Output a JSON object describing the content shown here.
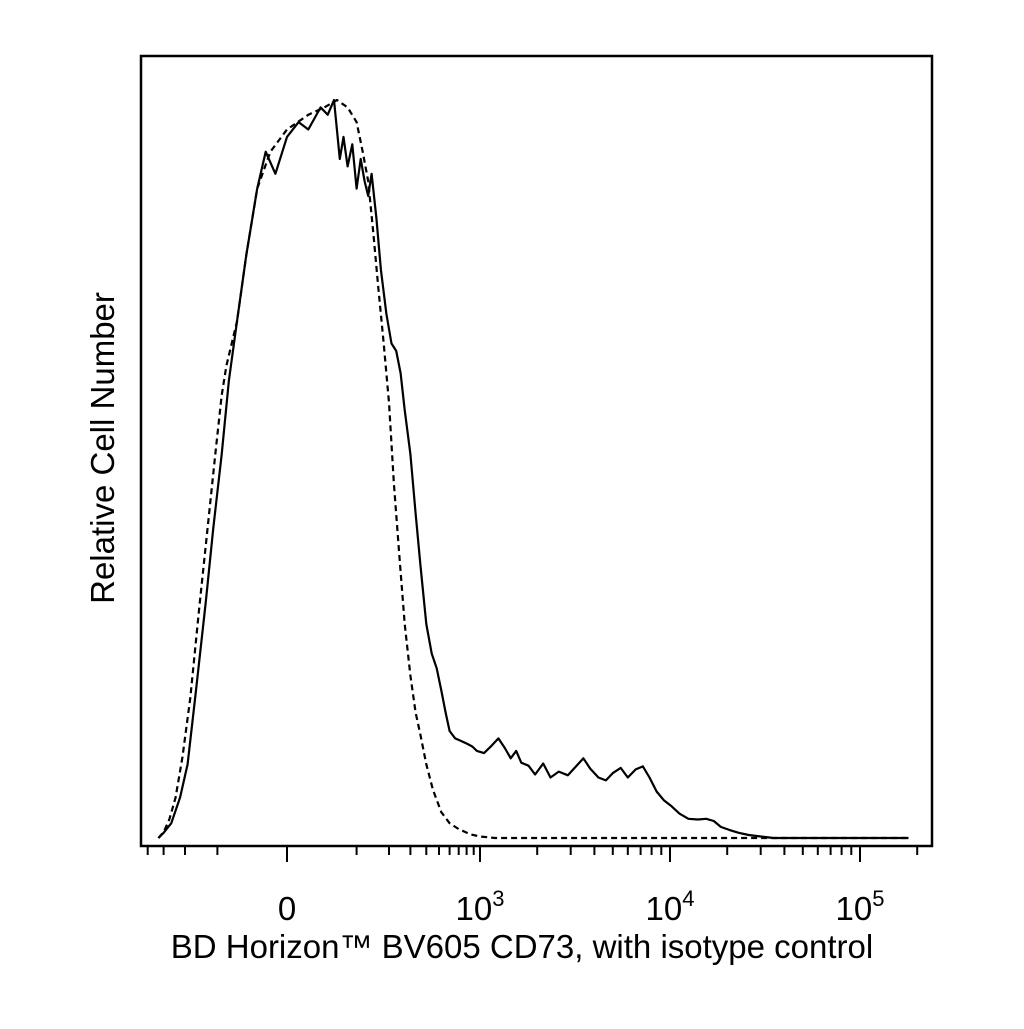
{
  "chart_data": {
    "type": "line",
    "title": "",
    "xlabel": "BD Horizon™ BV605 CD73, with isotype control",
    "ylabel": "Relative Cell Number",
    "x_scale": "biexponential",
    "xlim": [
      -400,
      200000
    ],
    "ylim": [
      0,
      100
    ],
    "grid": false,
    "legend": "none",
    "x_ticks": [
      {
        "value": 0,
        "base": "0",
        "exp": ""
      },
      {
        "value": 1000,
        "base": "10",
        "exp": "3"
      },
      {
        "value": 10000,
        "base": "10",
        "exp": "4"
      },
      {
        "value": 100000,
        "base": "10",
        "exp": "5"
      }
    ],
    "series": [
      {
        "style": "solid",
        "color": "#000000",
        "points": [
          [
            -330,
            0
          ],
          [
            -300,
            0.7
          ],
          [
            -260,
            2
          ],
          [
            -220,
            5.5
          ],
          [
            -190,
            10
          ],
          [
            -160,
            20
          ],
          [
            -130,
            32
          ],
          [
            -110,
            42
          ],
          [
            -90,
            52
          ],
          [
            -75,
            62
          ],
          [
            -60,
            70
          ],
          [
            -45,
            79
          ],
          [
            -30,
            88
          ],
          [
            -20,
            93
          ],
          [
            -10,
            90
          ],
          [
            0,
            95
          ],
          [
            10,
            97
          ],
          [
            20,
            96
          ],
          [
            35,
            99
          ],
          [
            45,
            98
          ],
          [
            55,
            100
          ],
          [
            65,
            92
          ],
          [
            72,
            95
          ],
          [
            80,
            91
          ],
          [
            90,
            94
          ],
          [
            100,
            88
          ],
          [
            110,
            92
          ],
          [
            120,
            89
          ],
          [
            130,
            87
          ],
          [
            140,
            90
          ],
          [
            155,
            84
          ],
          [
            170,
            77
          ],
          [
            190,
            71
          ],
          [
            210,
            67
          ],
          [
            230,
            66
          ],
          [
            250,
            63
          ],
          [
            270,
            58
          ],
          [
            300,
            52
          ],
          [
            330,
            44
          ],
          [
            360,
            37
          ],
          [
            400,
            29
          ],
          [
            440,
            25
          ],
          [
            480,
            23
          ],
          [
            520,
            20
          ],
          [
            560,
            17
          ],
          [
            600,
            14.5
          ],
          [
            660,
            13.5
          ],
          [
            720,
            13.2
          ],
          [
            800,
            12.8
          ],
          [
            880,
            12.4
          ],
          [
            950,
            11.8
          ],
          [
            1050,
            11.5
          ],
          [
            1150,
            12.5
          ],
          [
            1250,
            13.5
          ],
          [
            1350,
            12.2
          ],
          [
            1450,
            10.8
          ],
          [
            1550,
            11.8
          ],
          [
            1650,
            10.2
          ],
          [
            1800,
            9.8
          ],
          [
            1950,
            8.6
          ],
          [
            2150,
            10.1
          ],
          [
            2350,
            8.2
          ],
          [
            2600,
            9
          ],
          [
            2900,
            8.5
          ],
          [
            3200,
            9.7
          ],
          [
            3500,
            10.8
          ],
          [
            3800,
            9.4
          ],
          [
            4200,
            8.2
          ],
          [
            4600,
            7.8
          ],
          [
            5000,
            8.8
          ],
          [
            5500,
            9.5
          ],
          [
            6000,
            8.2
          ],
          [
            6600,
            9.3
          ],
          [
            7200,
            9.7
          ],
          [
            7800,
            8.2
          ],
          [
            8500,
            6.3
          ],
          [
            9300,
            5.1
          ],
          [
            10200,
            4.3
          ],
          [
            11200,
            3.3
          ],
          [
            12500,
            2.6
          ],
          [
            14000,
            2.5
          ],
          [
            15500,
            2.6
          ],
          [
            17000,
            2.3
          ],
          [
            18500,
            1.5
          ],
          [
            20500,
            1.1
          ],
          [
            23000,
            0.7
          ],
          [
            26000,
            0.4
          ],
          [
            30000,
            0.2
          ],
          [
            35000,
            0
          ],
          [
            180000,
            0
          ]
        ]
      },
      {
        "style": "dashed",
        "color": "#000000",
        "points": [
          [
            -330,
            0
          ],
          [
            -300,
            0.8
          ],
          [
            -270,
            2.5
          ],
          [
            -240,
            5.5
          ],
          [
            -210,
            11
          ],
          [
            -180,
            19
          ],
          [
            -150,
            31
          ],
          [
            -125,
            42
          ],
          [
            -105,
            52
          ],
          [
            -90,
            60
          ],
          [
            -80,
            64
          ],
          [
            -60,
            70
          ],
          [
            -45,
            79
          ],
          [
            -30,
            88
          ],
          [
            -15,
            93
          ],
          [
            0,
            96
          ],
          [
            20,
            98
          ],
          [
            40,
            99
          ],
          [
            60,
            100
          ],
          [
            80,
            99
          ],
          [
            100,
            97
          ],
          [
            115,
            93
          ],
          [
            130,
            89
          ],
          [
            145,
            82
          ],
          [
            160,
            75
          ],
          [
            180,
            67
          ],
          [
            200,
            59
          ],
          [
            220,
            48
          ],
          [
            245,
            38
          ],
          [
            270,
            29
          ],
          [
            300,
            22
          ],
          [
            330,
            17
          ],
          [
            360,
            14
          ],
          [
            400,
            10
          ],
          [
            450,
            6.5
          ],
          [
            520,
            3.5
          ],
          [
            600,
            2
          ],
          [
            700,
            1.2
          ],
          [
            850,
            0.5
          ],
          [
            1000,
            0.2
          ],
          [
            1200,
            0
          ],
          [
            180000,
            0
          ]
        ]
      }
    ]
  }
}
